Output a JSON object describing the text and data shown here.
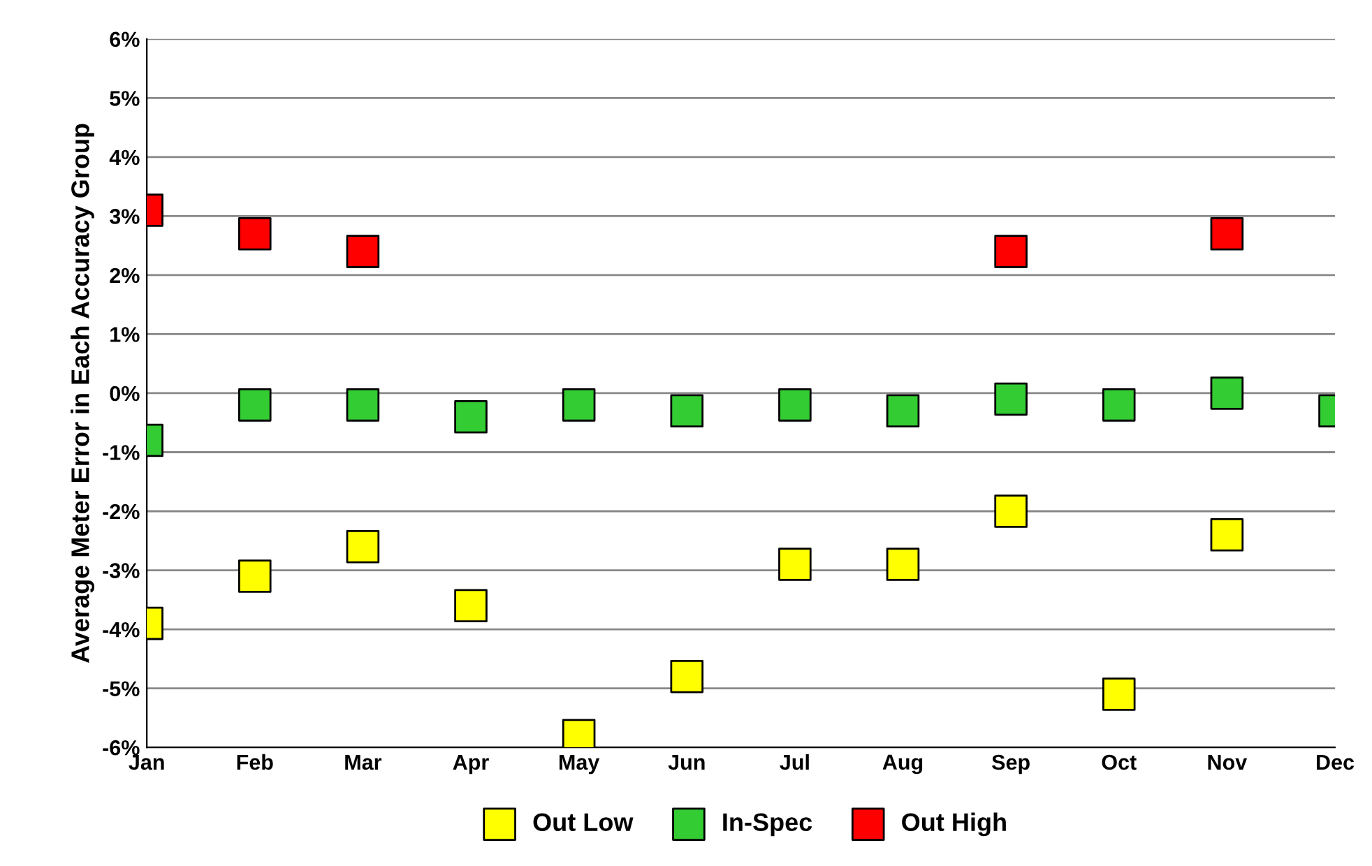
{
  "chart_data": {
    "type": "scatter",
    "ylabel": "Average Meter Error in Each Accuracy Group",
    "categories": [
      "Jan",
      "Feb",
      "Mar",
      "Apr",
      "May",
      "Jun",
      "Jul",
      "Aug",
      "Sep",
      "Oct",
      "Nov",
      "Dec"
    ],
    "series": [
      {
        "name": "Out Low",
        "color": "#ffff00",
        "values": [
          -3.9,
          -3.1,
          -2.6,
          -3.6,
          -5.8,
          -4.8,
          -2.9,
          -2.9,
          -2.0,
          -5.1,
          -2.4,
          null
        ]
      },
      {
        "name": "In-Spec",
        "color": "#33cc33",
        "values": [
          -0.8,
          -0.2,
          -0.2,
          -0.4,
          -0.2,
          -0.3,
          -0.2,
          -0.3,
          -0.1,
          -0.2,
          0.0,
          -0.3
        ]
      },
      {
        "name": "Out High",
        "color": "#ff0000",
        "values": [
          3.1,
          2.7,
          2.4,
          null,
          null,
          null,
          null,
          null,
          2.4,
          null,
          2.7,
          null
        ]
      }
    ],
    "ylim": [
      -6,
      6
    ],
    "yticks": [
      {
        "value": -6,
        "label": "-6%"
      },
      {
        "value": -5,
        "label": "-5%"
      },
      {
        "value": -4,
        "label": "-4%"
      },
      {
        "value": -3,
        "label": "-3%"
      },
      {
        "value": -2,
        "label": "-2%"
      },
      {
        "value": -1,
        "label": "-1%"
      },
      {
        "value": 0,
        "label": "0%"
      },
      {
        "value": 1,
        "label": "1%"
      },
      {
        "value": 2,
        "label": "2%"
      },
      {
        "value": 3,
        "label": "3%"
      },
      {
        "value": 4,
        "label": "4%"
      },
      {
        "value": 5,
        "label": "5%"
      },
      {
        "value": 6,
        "label": "6%"
      }
    ],
    "grid": "y",
    "legend": "bottom",
    "marker": "square"
  }
}
